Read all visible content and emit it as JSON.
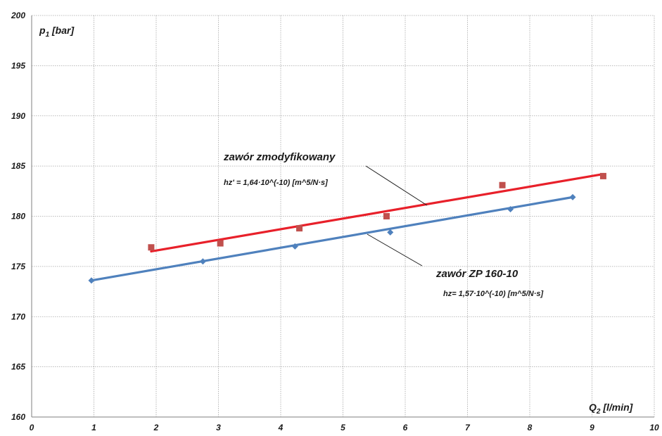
{
  "chart_data": {
    "type": "scatter",
    "xlabel": {
      "base": "Q",
      "sub": "2",
      "unit": " [l/min]"
    },
    "ylabel": {
      "base": "p",
      "sub": "1",
      "unit": " [bar]"
    },
    "xlim": [
      0,
      10
    ],
    "ylim": [
      160,
      200
    ],
    "xticks": [
      "0",
      "1",
      "2",
      "3",
      "4",
      "5",
      "6",
      "7",
      "8",
      "9",
      "10"
    ],
    "yticks": [
      "160",
      "165",
      "170",
      "175",
      "180",
      "185",
      "190",
      "195",
      "200"
    ],
    "grid": true,
    "series": [
      {
        "name": "zawór zmodyfikowany",
        "coefficient": "hz' = 1,64·10^(-10)  [m^5/N·s]",
        "color": "#c0504d",
        "line_color": "#e8202a",
        "marker": "square",
        "x": [
          1.92,
          3.03,
          4.3,
          5.7,
          7.56,
          9.18
        ],
        "y": [
          176.9,
          177.3,
          178.8,
          180.0,
          183.1,
          184.0
        ],
        "trend": {
          "x": [
            1.92,
            9.18
          ],
          "y": [
            176.5,
            184.2
          ]
        }
      },
      {
        "name": "zawór ZP 160-10",
        "coefficient": "hz= 1,57·10^(-10)  [m^5/N·s]",
        "color": "#4f81bd",
        "line_color": "#4f81bd",
        "marker": "diamond",
        "x": [
          0.96,
          2.75,
          4.23,
          5.76,
          7.69,
          8.69
        ],
        "y": [
          173.6,
          175.5,
          177.0,
          178.4,
          180.7,
          181.9
        ],
        "trend": {
          "x": [
            0.96,
            8.69
          ],
          "y": [
            173.6,
            181.9
          ]
        }
      }
    ]
  }
}
